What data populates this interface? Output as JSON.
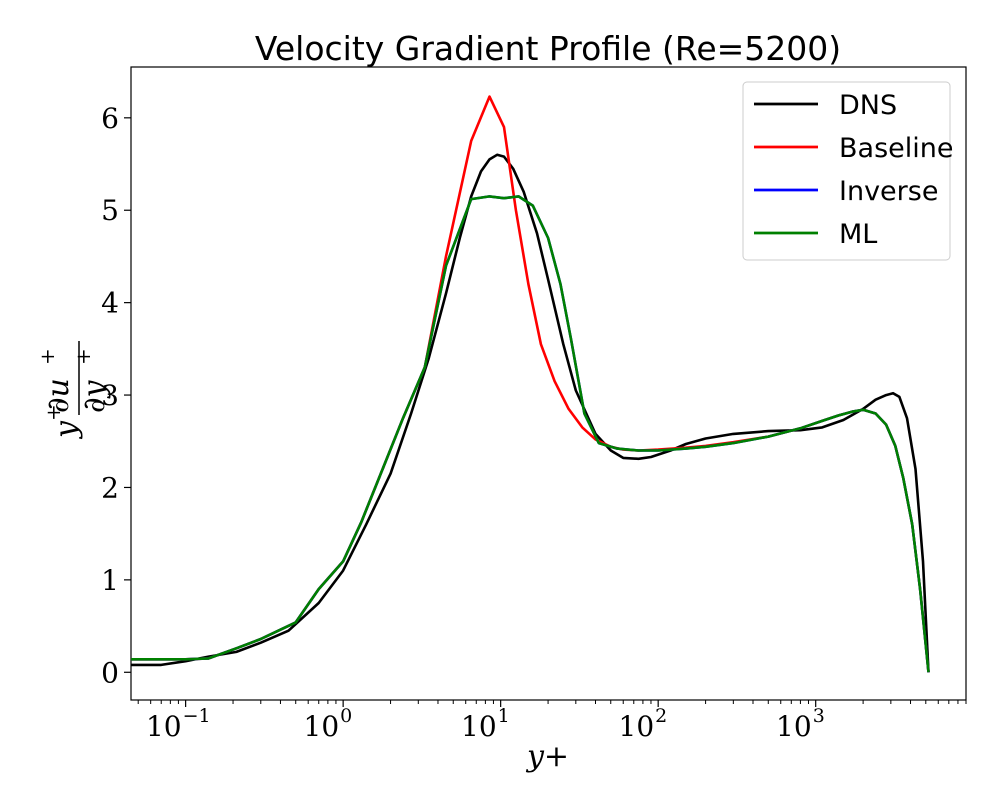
{
  "chart_data": {
    "type": "line",
    "title": "Velocity Gradient Profile (Re=5200)",
    "xlabel": "y+",
    "ylabel": {
      "prefix": "y",
      "prefix_sup": "+",
      "numerator": "∂u",
      "numerator_sup": "+",
      "denominator": "∂y",
      "denominator_sup": "+"
    },
    "xscale": "log",
    "xlim": [
      0.045,
      9000
    ],
    "ylim": [
      -0.3,
      6.55
    ],
    "xticks": [
      {
        "value": 0.1,
        "base": "10",
        "exp": "−1"
      },
      {
        "value": 1,
        "base": "10",
        "exp": "0"
      },
      {
        "value": 10,
        "base": "10",
        "exp": "1"
      },
      {
        "value": 100,
        "base": "10",
        "exp": "2"
      },
      {
        "value": 1000,
        "base": "10",
        "exp": "3"
      }
    ],
    "yticks": [
      {
        "value": 0,
        "label": "0"
      },
      {
        "value": 1,
        "label": "1"
      },
      {
        "value": 2,
        "label": "2"
      },
      {
        "value": 3,
        "label": "3"
      },
      {
        "value": 4,
        "label": "4"
      },
      {
        "value": 5,
        "label": "5"
      },
      {
        "value": 6,
        "label": "6"
      }
    ],
    "grid": false,
    "legend_position": "top-right",
    "series": [
      {
        "name": "DNS",
        "color": "#000000",
        "x": [
          0.045,
          0.07,
          0.1,
          0.14,
          0.21,
          0.3,
          0.45,
          0.7,
          1.0,
          1.4,
          2.0,
          2.7,
          3.5,
          4.5,
          5.5,
          6.5,
          7.5,
          8.5,
          9.5,
          10.5,
          12,
          14,
          17,
          20,
          25,
          30,
          40,
          50,
          60,
          75,
          90,
          120,
          150,
          200,
          300,
          500,
          800,
          1100,
          1500,
          2000,
          2400,
          2800,
          3100,
          3400,
          3800,
          4300,
          4800,
          5200
        ],
        "y": [
          0.08,
          0.08,
          0.12,
          0.17,
          0.22,
          0.32,
          0.45,
          0.75,
          1.1,
          1.6,
          2.15,
          2.8,
          3.4,
          4.1,
          4.7,
          5.15,
          5.42,
          5.55,
          5.6,
          5.58,
          5.45,
          5.2,
          4.75,
          4.25,
          3.55,
          3.05,
          2.58,
          2.4,
          2.32,
          2.31,
          2.33,
          2.4,
          2.47,
          2.53,
          2.58,
          2.61,
          2.62,
          2.65,
          2.73,
          2.85,
          2.95,
          3.0,
          3.02,
          2.98,
          2.75,
          2.2,
          1.2,
          0.0
        ]
      },
      {
        "name": "Baseline",
        "color": "#ff0000",
        "x": [
          0.045,
          0.07,
          0.1,
          0.14,
          0.21,
          0.3,
          0.5,
          0.7,
          1.0,
          1.3,
          1.8,
          2.4,
          3.3,
          4.5,
          6.5,
          8.5,
          10.5,
          12.5,
          15,
          18,
          22,
          27,
          33,
          40,
          50,
          60,
          75,
          100,
          150,
          200,
          300,
          500,
          800,
          1100,
          1400,
          1700,
          2000,
          2400,
          2800,
          3200,
          3600,
          4100,
          4600,
          5200
        ],
        "y": [
          0.14,
          0.14,
          0.14,
          0.15,
          0.26,
          0.36,
          0.54,
          0.9,
          1.2,
          1.62,
          2.22,
          2.75,
          3.3,
          4.5,
          5.75,
          6.23,
          5.9,
          5.0,
          4.2,
          3.55,
          3.15,
          2.85,
          2.65,
          2.52,
          2.44,
          2.41,
          2.4,
          2.41,
          2.43,
          2.45,
          2.49,
          2.55,
          2.64,
          2.72,
          2.78,
          2.82,
          2.84,
          2.8,
          2.68,
          2.45,
          2.1,
          1.6,
          0.9,
          0.0
        ]
      },
      {
        "name": "Inverse",
        "color": "#0000ff",
        "x": [
          0.045,
          0.07,
          0.1,
          0.14,
          0.21,
          0.3,
          0.5,
          0.7,
          1.0,
          1.3,
          1.8,
          2.4,
          3.3,
          4.5,
          6.5,
          8.5,
          10.5,
          13,
          16,
          20,
          24,
          28,
          34,
          42,
          55,
          75,
          100,
          150,
          200,
          300,
          500,
          800,
          1100,
          1400,
          1700,
          2000,
          2400,
          2800,
          3200,
          3600,
          4100,
          4600,
          5200
        ],
        "y": [
          0.14,
          0.14,
          0.14,
          0.15,
          0.26,
          0.36,
          0.54,
          0.9,
          1.2,
          1.62,
          2.22,
          2.75,
          3.3,
          4.4,
          5.12,
          5.15,
          5.13,
          5.15,
          5.05,
          4.7,
          4.2,
          3.6,
          2.8,
          2.48,
          2.42,
          2.4,
          2.4,
          2.42,
          2.44,
          2.48,
          2.55,
          2.64,
          2.72,
          2.78,
          2.82,
          2.84,
          2.8,
          2.68,
          2.45,
          2.1,
          1.6,
          0.9,
          0.0
        ]
      },
      {
        "name": "ML",
        "color": "#008000",
        "x": [
          0.045,
          0.07,
          0.1,
          0.14,
          0.21,
          0.3,
          0.5,
          0.7,
          1.0,
          1.3,
          1.8,
          2.4,
          3.3,
          4.5,
          6.5,
          8.5,
          10.5,
          13,
          16,
          20,
          24,
          28,
          34,
          42,
          55,
          75,
          100,
          150,
          200,
          300,
          500,
          800,
          1100,
          1400,
          1700,
          2000,
          2400,
          2800,
          3200,
          3600,
          4100,
          4600,
          5200
        ],
        "y": [
          0.14,
          0.14,
          0.14,
          0.15,
          0.26,
          0.36,
          0.54,
          0.9,
          1.2,
          1.62,
          2.22,
          2.75,
          3.3,
          4.4,
          5.12,
          5.15,
          5.13,
          5.15,
          5.05,
          4.7,
          4.2,
          3.6,
          2.8,
          2.48,
          2.42,
          2.4,
          2.4,
          2.42,
          2.44,
          2.48,
          2.55,
          2.64,
          2.72,
          2.78,
          2.82,
          2.84,
          2.8,
          2.68,
          2.45,
          2.1,
          1.6,
          0.9,
          0.0
        ]
      }
    ]
  }
}
